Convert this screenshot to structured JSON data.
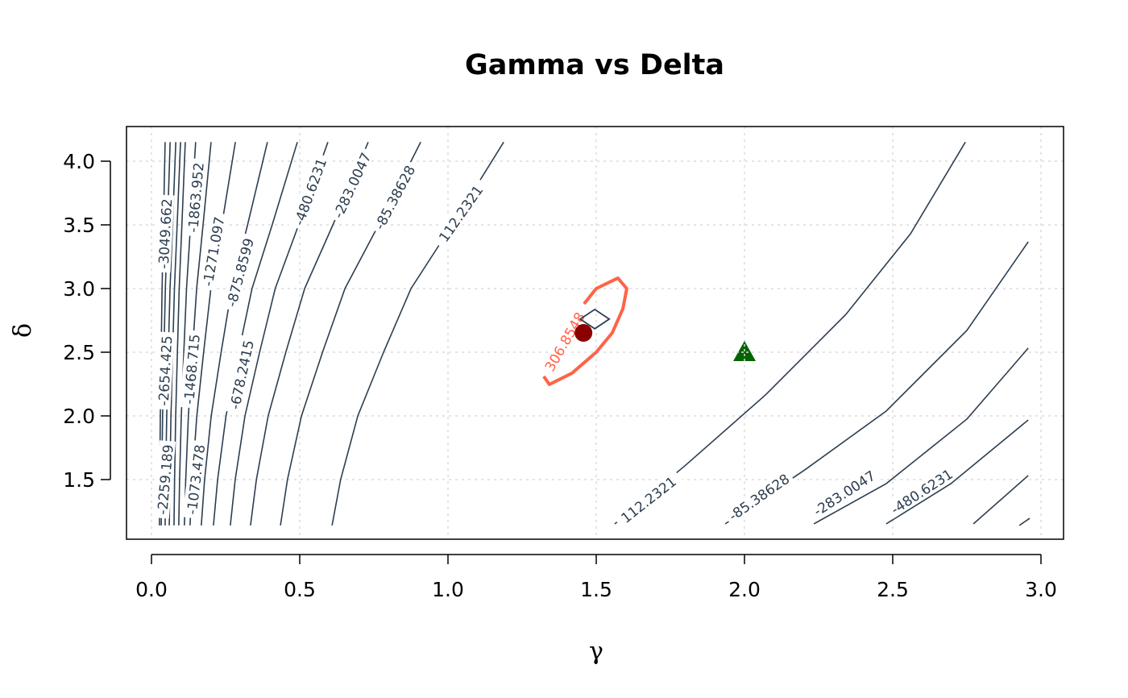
{
  "chart_data": {
    "type": "contour",
    "title": "Gamma vs Delta",
    "xlabel": "γ",
    "ylabel": "δ",
    "xlim": [
      -0.08,
      3.07
    ],
    "ylim": [
      1.07,
      4.31
    ],
    "xticks": [
      "0.0",
      "0.5",
      "1.0",
      "1.5",
      "2.0",
      "2.5",
      "3.0"
    ],
    "yticks": [
      "1.5",
      "2.0",
      "2.5",
      "3.0",
      "3.5",
      "4.0"
    ],
    "grid": true,
    "colors": {
      "contour": "#2c3e50",
      "highlight": "#ff6347",
      "point": "#8b0000",
      "triangle": "#006400"
    },
    "left_contours": {
      "delta_top": 4.15,
      "delta_bottom": 1.14,
      "lines": [
        {
          "gamma_top": 0.046,
          "gamma_bottom": 0.027
        },
        {
          "gamma_top": 0.063,
          "gamma_bottom": 0.033
        },
        {
          "gamma_top": 0.082,
          "gamma_bottom": 0.046
        },
        {
          "gamma_top": 0.098,
          "gamma_bottom": 0.06
        },
        {
          "gamma_top": 0.114,
          "gamma_bottom": 0.076
        },
        {
          "gamma_top": 0.149,
          "gamma_bottom": 0.092
        },
        {
          "gamma_top": 0.201,
          "gamma_bottom": 0.111
        },
        {
          "gamma_top": 0.283,
          "gamma_bottom": 0.13
        },
        {
          "gamma_top": 0.391,
          "gamma_bottom": 0.168
        },
        {
          "gamma_top": 0.492,
          "gamma_bottom": 0.209
        },
        {
          "gamma_top": 0.595,
          "gamma_bottom": 0.266
        },
        {
          "gamma_top": 0.731,
          "gamma_bottom": 0.334
        },
        {
          "gamma_top": 0.908,
          "gamma_bottom": 0.435
        },
        {
          "gamma_top": 1.188,
          "gamma_bottom": 0.609
        }
      ]
    },
    "right_contours": [
      {
        "level": 112.2321,
        "points": [
          [
            1.5625,
            1.152
          ],
          [
            1.799,
            1.608
          ],
          [
            2.071,
            2.165
          ],
          [
            2.342,
            2.797
          ],
          [
            2.56,
            3.43
          ],
          [
            2.745,
            4.15
          ]
        ]
      },
      {
        "level": -85.38628,
        "points": [
          [
            1.935,
            1.152
          ],
          [
            2.207,
            1.582
          ],
          [
            2.478,
            2.038
          ],
          [
            2.75,
            2.671
          ],
          [
            2.957,
            3.367
          ]
        ]
      },
      {
        "level": -283.0047,
        "points": [
          [
            2.234,
            1.152
          ],
          [
            2.478,
            1.468
          ],
          [
            2.75,
            1.975
          ],
          [
            2.957,
            2.532
          ]
        ]
      },
      {
        "level": -480.6231,
        "points": [
          [
            2.478,
            1.152
          ],
          [
            2.696,
            1.468
          ],
          [
            2.957,
            1.968
          ]
        ]
      },
      {
        "level": -678.2415,
        "points": [
          [
            2.772,
            1.152
          ],
          [
            2.957,
            1.532
          ]
        ]
      },
      {
        "level": -875.8599,
        "points": [
          [
            2.927,
            1.14
          ],
          [
            2.962,
            1.196
          ]
        ]
      }
    ],
    "highlight_contour": {
      "level": 306.8548,
      "label": "306.8548",
      "points": [
        [
          1.459,
          2.88
        ],
        [
          1.5,
          3.0
        ],
        [
          1.573,
          3.082
        ],
        [
          1.603,
          3.0
        ],
        [
          1.59,
          2.842
        ],
        [
          1.554,
          2.652
        ],
        [
          1.5,
          2.5
        ],
        [
          1.418,
          2.335
        ],
        [
          1.342,
          2.247
        ],
        [
          1.323,
          2.31
        ]
      ]
    },
    "contour_labels": [
      "-3049.662",
      "-2654.425",
      "-2259.189",
      "-1863.952",
      "-1468.715",
      "-1073.478",
      "-1271.097",
      "-875.8599",
      "-678.2415",
      "-480.6231",
      "-283.0047",
      "-85.38628",
      "112.2321",
      "112.2321",
      "-85.38628",
      "-283.0047",
      "-480.6231"
    ],
    "markers": [
      {
        "type": "circle",
        "gamma": 1.457,
        "delta": 2.652
      },
      {
        "type": "diamond",
        "gamma": 1.495,
        "delta": 2.76
      },
      {
        "type": "triangle",
        "gamma": 2.0,
        "delta": 2.5
      }
    ]
  }
}
